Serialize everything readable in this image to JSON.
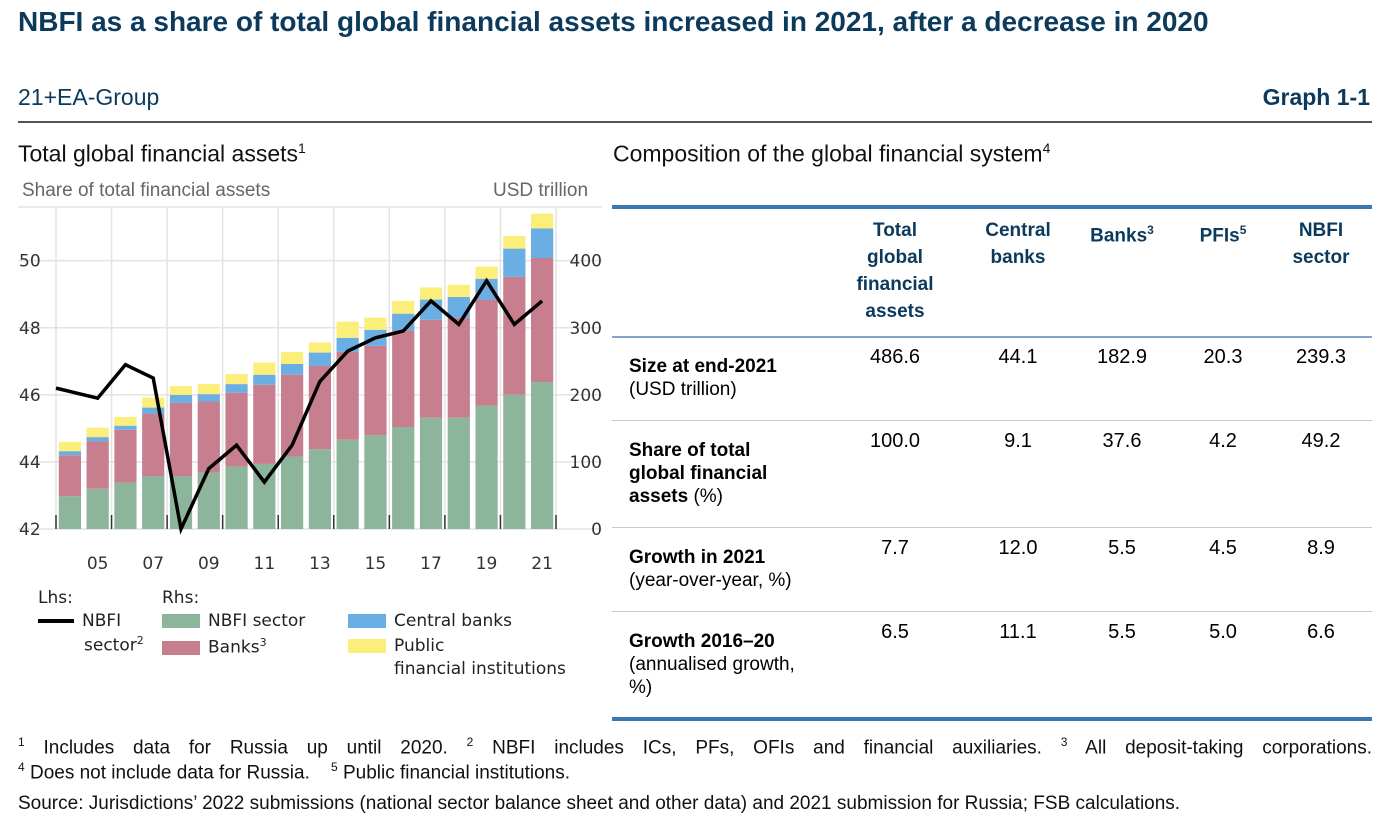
{
  "header": {
    "title": "NBFI as a share of total global financial assets increased in 2021, after a decrease in 2020",
    "subtitle": "21+EA-Group",
    "graph_number": "Graph 1-1"
  },
  "left_panel": {
    "title": "Total global financial assets",
    "title_sup": "1",
    "lhs_unit": "Share of total financial assets",
    "rhs_unit": "USD trillion",
    "legend": {
      "lhs_label": "Lhs:",
      "rhs_label": "Rhs:",
      "line_label_1": "NBFI",
      "line_label_2": "sector",
      "line_sup": "2",
      "nbfi": "NBFI sector",
      "banks": "Banks",
      "banks_sup": "3",
      "central_banks": "Central banks",
      "pfi_1": "Public",
      "pfi_2": "financial institutions"
    }
  },
  "chart_data": {
    "type": "bar",
    "stacked": true,
    "title": "Total global financial assets",
    "ylabel_left": "Share of total financial assets",
    "ylabel_right": "USD trillion",
    "x": [
      2004,
      2005,
      2006,
      2007,
      2008,
      2009,
      2010,
      2011,
      2012,
      2013,
      2014,
      2015,
      2016,
      2017,
      2018,
      2019,
      2020,
      2021
    ],
    "x_tick_labels": [
      "05",
      "07",
      "09",
      "11",
      "13",
      "15",
      "17",
      "19",
      "21"
    ],
    "x_tick_years": [
      2005,
      2007,
      2009,
      2011,
      2013,
      2015,
      2017,
      2019,
      2021
    ],
    "ylim_left": [
      42,
      51.6
    ],
    "yticks_left": [
      42,
      44,
      46,
      48,
      50
    ],
    "ylim_right": [
      0,
      480
    ],
    "yticks_right": [
      0,
      100,
      200,
      300,
      400
    ],
    "grid": true,
    "colors": {
      "nbfi": "#8db59b",
      "banks": "#c77f90",
      "central_banks": "#6aaee3",
      "pfi": "#fbee7a",
      "line": "#000000"
    },
    "series": [
      {
        "name": "NBFI sector",
        "axis": "right",
        "values": [
          49,
          60,
          69,
          79,
          79,
          84,
          93,
          97,
          108,
          119,
          133,
          140,
          152,
          166,
          166,
          184,
          200,
          219
        ]
      },
      {
        "name": "Banks",
        "axis": "right",
        "values": [
          61,
          71,
          79,
          93,
          109,
          106,
          110,
          118,
          122,
          124,
          131,
          133,
          144,
          146,
          149,
          158,
          176,
          185
        ]
      },
      {
        "name": "Central banks",
        "axis": "right",
        "values": [
          6,
          6,
          6,
          9,
          12,
          11,
          13,
          15,
          16,
          20,
          21,
          24,
          25,
          30,
          31,
          31,
          42,
          44
        ]
      },
      {
        "name": "Public financial institutions",
        "axis": "right",
        "values": [
          14,
          14,
          13,
          15,
          13,
          15,
          15,
          18,
          18,
          15,
          24,
          18,
          19,
          18,
          18,
          18,
          19,
          22
        ]
      },
      {
        "name": "NBFI sector",
        "type": "line",
        "axis": "left",
        "values": [
          46.2,
          45.9,
          46.9,
          46.5,
          42.0,
          43.8,
          44.5,
          43.4,
          44.5,
          46.4,
          47.3,
          47.7,
          47.9,
          48.8,
          48.1,
          49.4,
          48.1,
          48.8
        ]
      }
    ]
  },
  "right_panel": {
    "title": "Composition of the global financial system",
    "title_sup": "4",
    "columns": [
      {
        "lines": [
          "Total",
          "global",
          "financial",
          "assets"
        ],
        "sup": ""
      },
      {
        "lines": [
          "Central",
          "banks"
        ],
        "sup": ""
      },
      {
        "lines": [
          "Banks"
        ],
        "sup": "3"
      },
      {
        "lines": [
          "PFIs"
        ],
        "sup": "5"
      },
      {
        "lines": [
          "NBFI",
          "sector"
        ],
        "sup": ""
      }
    ],
    "rows": [
      {
        "bold": "Size at end-2021",
        "normal": "(USD trillion)",
        "values": [
          "486.6",
          "44.1",
          "182.9",
          "20.3",
          "239.3"
        ]
      },
      {
        "bold": "Share of total global financial assets",
        "normal": "(%)",
        "values": [
          "100.0",
          "9.1",
          "37.6",
          "4.2",
          "49.2"
        ]
      },
      {
        "bold": "Growth in 2021",
        "normal": "(year-over-year, %)",
        "values": [
          "7.7",
          "12.0",
          "5.5",
          "4.5",
          "8.9"
        ]
      },
      {
        "bold": "Growth 2016–20",
        "normal": "(annualised growth, %)",
        "values": [
          "6.5",
          "11.1",
          "5.5",
          "5.0",
          "6.6"
        ]
      }
    ]
  },
  "footnotes": {
    "n1_sup": "1",
    "n1": " Includes data for Russia up until 2020.",
    "n2_sup": "2",
    "n2": " NBFI includes ICs, PFs, OFIs and financial auxiliaries.",
    "n3_sup": "3",
    "n3": " All deposit-taking corporations.",
    "n4_sup": "4",
    "n4": "  Does not include data for Russia.",
    "n5_sup": "5",
    "n5": "  Public financial institutions.",
    "source": "Source: Jurisdictions’ 2022 submissions (national sector balance sheet and other data) and 2021 submission for Russia; FSB calculations."
  }
}
